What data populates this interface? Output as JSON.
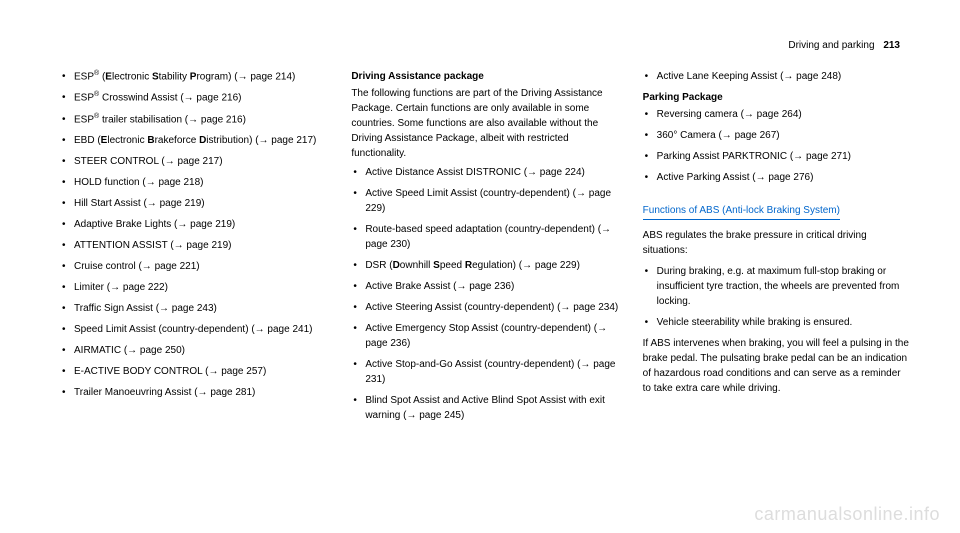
{
  "header": {
    "section": "Driving and parking",
    "pageNum": "213"
  },
  "col1": {
    "items": [
      "ESP<sup class='reg'>®</sup> (<b>E</b>lectronic <b>S</b>tability <b>P</b>rogram) (→ page 214)",
      "ESP<sup class='reg'>®</sup> Crosswind Assist (→ page 216)",
      "ESP<sup class='reg'>®</sup> trailer stabilisation (→ page 216)",
      "EBD (<b>E</b>lectronic <b>B</b>rakeforce <b>D</b>istribution) (→ page 217)",
      "STEER CONTROL (→ page 217)",
      "HOLD function (→ page 218)",
      "Hill Start Assist (→ page 219)",
      "Adaptive Brake Lights (→ page 219)",
      "ATTENTION ASSIST (→ page 219)",
      "Cruise control (→ page 221)",
      "Limiter (→ page 222)",
      "Traffic Sign Assist (→ page 243)",
      "Speed Limit Assist (country-dependent) (→ page 241)",
      "AIRMATIC (→ page 250)",
      "E-ACTIVE BODY CONTROL (→ page 257)",
      "Trailer Manoeuvring Assist (→ page 281)"
    ]
  },
  "col2": {
    "title": "Driving Assistance package",
    "intro": "The following functions are part of the Driving Assistance Package. Certain functions are only available in some countries. Some functions are also available without the Driving Assistance Package, albeit with restricted functionality.",
    "items": [
      "Active Distance Assist DISTRONIC (→ page 224)",
      "Active Speed Limit Assist (country-dependent) (→ page 229)",
      "Route-based speed adaptation (country-dependent) (→ page 230)",
      "DSR (<b>D</b>ownhill <b>S</b>peed <b>R</b>egulation) (→ page 229)",
      "Active Brake Assist (→ page 236)",
      "Active Steering Assist (country-dependent) (→ page 234)",
      "Active Emergency Stop Assist (country-dependent) (→ page 236)",
      "Active Stop-and-Go Assist (country-dependent) (→ page 231)",
      "Blind Spot Assist and Active Blind Spot Assist with exit warning (→ page 245)"
    ]
  },
  "col3": {
    "topItems": [
      "Active Lane Keeping Assist (→ page 248)"
    ],
    "parkingTitle": "Parking Package",
    "parkingItems": [
      "Reversing camera (→ page 264)",
      "360° Camera (→ page 267)",
      "Parking Assist PARKTRONIC (→ page 271)",
      "Active Parking Assist (→ page 276)"
    ],
    "absTitle": "Functions of ABS (Anti-lock Braking System)",
    "absIntro": "ABS regulates the brake pressure in critical driving situations:",
    "absItems": [
      "During braking, e.g. at maximum full-stop braking or insufficient tyre traction, the wheels are prevented from locking.",
      "Vehicle steerability while braking is ensured."
    ],
    "absOutro": "If ABS intervenes when braking, you will feel a pulsing in the brake pedal. The pulsating brake pedal can be an indication of hazardous road conditions and can serve as a reminder to take extra care while driving."
  },
  "watermark": "carmanualsonline.info"
}
